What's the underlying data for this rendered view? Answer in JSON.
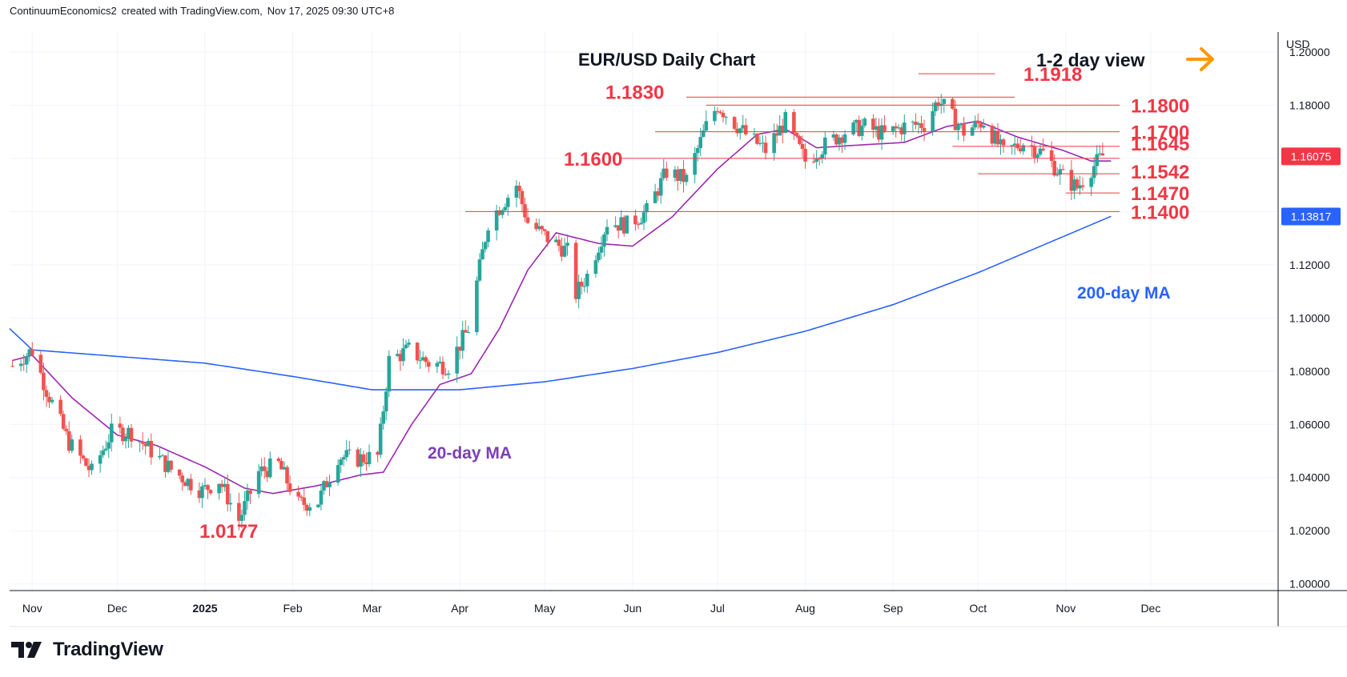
{
  "header": {
    "author": "ContinuumEconomics2",
    "created_with": "created with TradingView.com,",
    "timestamp": "Nov 17, 2025 09:30 UTC+8"
  },
  "brand": {
    "name": "TradingView",
    "icon": "tradingview-logo"
  },
  "colors": {
    "up": "#26a69a",
    "down": "#ef5350",
    "ma20": "#9c27b0",
    "ma200": "#2962ff",
    "level": "#f23645",
    "arrow": "#ff9800",
    "price_tag": "#f23645",
    "ma_tag": "#2962ff"
  },
  "chart_data": {
    "type": "candlestick",
    "title": "EUR/USD Daily Chart",
    "subtitle": "1-2 day view",
    "currency": "USD",
    "y_ticks": [
      "1.20000",
      "1.18000",
      "1.16000",
      "1.14000",
      "1.12000",
      "1.10000",
      "1.08000",
      "1.06000",
      "1.04000",
      "1.02000",
      "1.00000"
    ],
    "y_tick_values": [
      1.2,
      1.18,
      1.16,
      1.14,
      1.12,
      1.1,
      1.08,
      1.06,
      1.04,
      1.02,
      1.0
    ],
    "ylim": [
      0.9975,
      1.2075
    ],
    "x_ticks": [
      "Nov",
      "Dec",
      "2025",
      "Feb",
      "Mar",
      "Apr",
      "May",
      "Jun",
      "Jul",
      "Aug",
      "Sep",
      "Oct",
      "Nov",
      "Dec"
    ],
    "x_tick_dates": [
      "2024-11-01",
      "2024-12-01",
      "2025-01-01",
      "2025-02-01",
      "2025-03-01",
      "2025-04-01",
      "2025-05-01",
      "2025-06-01",
      "2025-07-01",
      "2025-08-01",
      "2025-09-01",
      "2025-10-01",
      "2025-11-01",
      "2025-12-01"
    ],
    "xlim": [
      "2024-10-24",
      "2026-01-15"
    ],
    "last_price": "1.16075",
    "ma200_value": "1.13817",
    "levels": [
      {
        "label": "1.1918",
        "value": 1.1918,
        "from": "2025-09-10",
        "to": "2025-10-07"
      },
      {
        "label": "1.1830",
        "value": 1.183,
        "from": "2025-06-20",
        "to": "2025-10-14"
      },
      {
        "label": "1.1800",
        "value": 1.18,
        "from": "2025-06-27",
        "to": "2025-11-20"
      },
      {
        "label": "1.1700",
        "value": 1.17,
        "from": "2025-06-09",
        "to": "2025-11-20"
      },
      {
        "label": "1.1645",
        "value": 1.1645,
        "from": "2025-09-22",
        "to": "2025-11-20"
      },
      {
        "label": "1.1600",
        "value": 1.16,
        "from": "2025-05-28",
        "to": "2025-11-20"
      },
      {
        "label": "1.1542",
        "value": 1.1542,
        "from": "2025-10-01",
        "to": "2025-11-20"
      },
      {
        "label": "1.1470",
        "value": 1.147,
        "from": "2025-11-01",
        "to": "2025-11-20"
      },
      {
        "label": "1.1400",
        "value": 1.14,
        "from": "2025-04-03",
        "to": "2025-11-20"
      },
      {
        "label": "1.0177",
        "value": 1.0177,
        "from": null,
        "to": null
      }
    ],
    "ma_labels": {
      "ma20": "20-day MA",
      "ma200": "200-day MA"
    },
    "series": [
      {
        "date": "2024-10-25",
        "close": 1.082
      },
      {
        "date": "2024-11-01",
        "close": 1.088
      },
      {
        "date": "2024-11-06",
        "close": 1.073
      },
      {
        "date": "2024-11-14",
        "close": 1.053
      },
      {
        "date": "2024-11-22",
        "close": 1.042
      },
      {
        "date": "2024-11-29",
        "close": 1.057
      },
      {
        "date": "2024-12-06",
        "close": 1.057
      },
      {
        "date": "2024-12-13",
        "close": 1.05
      },
      {
        "date": "2024-12-20",
        "close": 1.043
      },
      {
        "date": "2024-12-31",
        "close": 1.035
      },
      {
        "date": "2025-01-06",
        "close": 1.039
      },
      {
        "date": "2025-01-13",
        "close": 1.024
      },
      {
        "date": "2025-01-20",
        "close": 1.042
      },
      {
        "date": "2025-01-27",
        "close": 1.045
      },
      {
        "date": "2025-02-03",
        "close": 1.03
      },
      {
        "date": "2025-02-10",
        "close": 1.031
      },
      {
        "date": "2025-02-17",
        "close": 1.048
      },
      {
        "date": "2025-02-24",
        "close": 1.047
      },
      {
        "date": "2025-03-03",
        "close": 1.048
      },
      {
        "date": "2025-03-07",
        "close": 1.084
      },
      {
        "date": "2025-03-14",
        "close": 1.088
      },
      {
        "date": "2025-03-21",
        "close": 1.083
      },
      {
        "date": "2025-03-28",
        "close": 1.082
      },
      {
        "date": "2025-04-04",
        "close": 1.096
      },
      {
        "date": "2025-04-11",
        "close": 1.136
      },
      {
        "date": "2025-04-21",
        "close": 1.15
      },
      {
        "date": "2025-04-25",
        "close": 1.136
      },
      {
        "date": "2025-05-02",
        "close": 1.13
      },
      {
        "date": "2025-05-09",
        "close": 1.125
      },
      {
        "date": "2025-05-12",
        "close": 1.109
      },
      {
        "date": "2025-05-16",
        "close": 1.116
      },
      {
        "date": "2025-05-23",
        "close": 1.136
      },
      {
        "date": "2025-05-30",
        "close": 1.135
      },
      {
        "date": "2025-06-06",
        "close": 1.14
      },
      {
        "date": "2025-06-13",
        "close": 1.155
      },
      {
        "date": "2025-06-20",
        "close": 1.152
      },
      {
        "date": "2025-06-27",
        "close": 1.172
      },
      {
        "date": "2025-07-01",
        "close": 1.18
      },
      {
        "date": "2025-07-11",
        "close": 1.169
      },
      {
        "date": "2025-07-18",
        "close": 1.163
      },
      {
        "date": "2025-07-25",
        "close": 1.174
      },
      {
        "date": "2025-08-01",
        "close": 1.159
      },
      {
        "date": "2025-08-08",
        "close": 1.165
      },
      {
        "date": "2025-08-15",
        "close": 1.17
      },
      {
        "date": "2025-08-22",
        "close": 1.172
      },
      {
        "date": "2025-08-29",
        "close": 1.169
      },
      {
        "date": "2025-09-05",
        "close": 1.172
      },
      {
        "date": "2025-09-12",
        "close": 1.173
      },
      {
        "date": "2025-09-17",
        "close": 1.182
      },
      {
        "date": "2025-09-26",
        "close": 1.17
      },
      {
        "date": "2025-10-03",
        "close": 1.174
      },
      {
        "date": "2025-10-10",
        "close": 1.162
      },
      {
        "date": "2025-10-17",
        "close": 1.166
      },
      {
        "date": "2025-10-24",
        "close": 1.162
      },
      {
        "date": "2025-10-31",
        "close": 1.153
      },
      {
        "date": "2025-11-05",
        "close": 1.149
      },
      {
        "date": "2025-11-10",
        "close": 1.156
      },
      {
        "date": "2025-11-14",
        "close": 1.161
      },
      {
        "date": "2025-11-17",
        "close": 1.1607
      }
    ],
    "ma20": [
      {
        "date": "2024-10-25",
        "value": 1.084
      },
      {
        "date": "2024-11-01",
        "value": 1.086
      },
      {
        "date": "2024-11-15",
        "value": 1.07
      },
      {
        "date": "2024-12-01",
        "value": 1.056
      },
      {
        "date": "2024-12-15",
        "value": 1.052
      },
      {
        "date": "2025-01-01",
        "value": 1.044
      },
      {
        "date": "2025-01-15",
        "value": 1.036
      },
      {
        "date": "2025-01-25",
        "value": 1.034
      },
      {
        "date": "2025-02-10",
        "value": 1.037
      },
      {
        "date": "2025-02-25",
        "value": 1.041
      },
      {
        "date": "2025-03-05",
        "value": 1.042
      },
      {
        "date": "2025-03-15",
        "value": 1.06
      },
      {
        "date": "2025-03-25",
        "value": 1.075
      },
      {
        "date": "2025-04-05",
        "value": 1.079
      },
      {
        "date": "2025-04-15",
        "value": 1.096
      },
      {
        "date": "2025-04-25",
        "value": 1.118
      },
      {
        "date": "2025-05-05",
        "value": 1.132
      },
      {
        "date": "2025-05-20",
        "value": 1.128
      },
      {
        "date": "2025-06-01",
        "value": 1.127
      },
      {
        "date": "2025-06-15",
        "value": 1.138
      },
      {
        "date": "2025-07-01",
        "value": 1.156
      },
      {
        "date": "2025-07-15",
        "value": 1.169
      },
      {
        "date": "2025-07-25",
        "value": 1.171
      },
      {
        "date": "2025-08-05",
        "value": 1.164
      },
      {
        "date": "2025-08-20",
        "value": 1.165
      },
      {
        "date": "2025-09-05",
        "value": 1.166
      },
      {
        "date": "2025-09-20",
        "value": 1.172
      },
      {
        "date": "2025-10-01",
        "value": 1.174
      },
      {
        "date": "2025-10-15",
        "value": 1.168
      },
      {
        "date": "2025-10-31",
        "value": 1.163
      },
      {
        "date": "2025-11-10",
        "value": 1.159
      },
      {
        "date": "2025-11-17",
        "value": 1.159
      }
    ],
    "ma200": [
      {
        "date": "2024-10-24",
        "value": 1.096
      },
      {
        "date": "2024-11-01",
        "value": 1.088
      },
      {
        "date": "2025-01-01",
        "value": 1.083
      },
      {
        "date": "2025-02-01",
        "value": 1.078
      },
      {
        "date": "2025-03-01",
        "value": 1.073
      },
      {
        "date": "2025-04-01",
        "value": 1.073
      },
      {
        "date": "2025-05-01",
        "value": 1.076
      },
      {
        "date": "2025-06-01",
        "value": 1.081
      },
      {
        "date": "2025-07-01",
        "value": 1.087
      },
      {
        "date": "2025-08-01",
        "value": 1.095
      },
      {
        "date": "2025-09-01",
        "value": 1.105
      },
      {
        "date": "2025-10-01",
        "value": 1.117
      },
      {
        "date": "2025-11-01",
        "value": 1.131
      },
      {
        "date": "2025-11-17",
        "value": 1.1382
      }
    ]
  }
}
